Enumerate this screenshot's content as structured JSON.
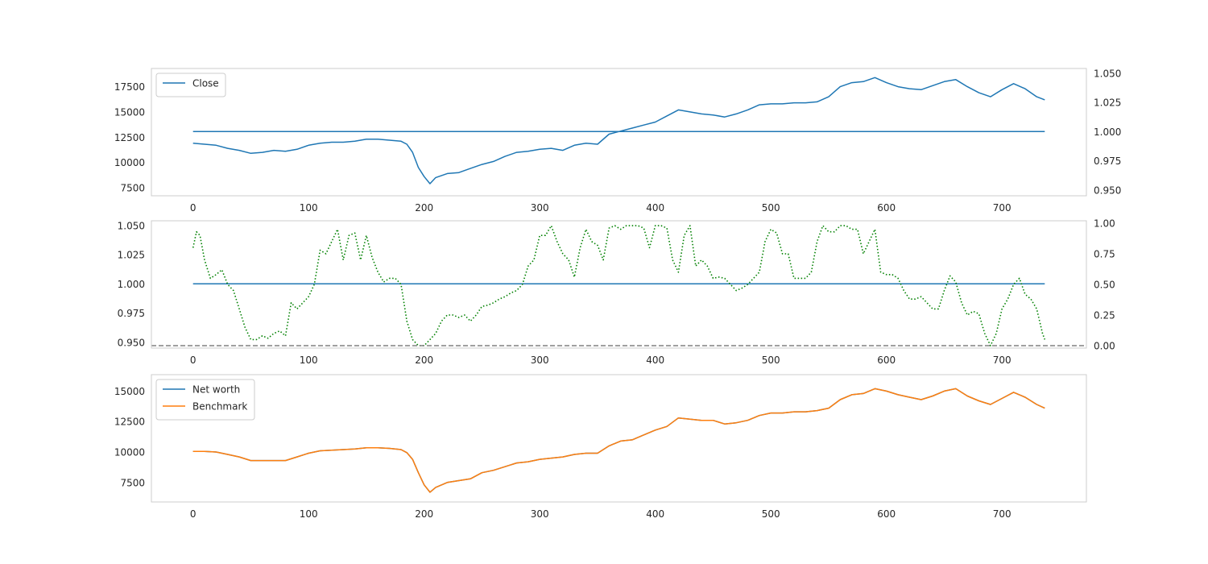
{
  "chart_data": [
    {
      "type": "line",
      "title": "",
      "xlabel": "",
      "ylabel": "",
      "xlim": [
        -36,
        773
      ],
      "xticks": [
        0,
        100,
        200,
        300,
        400,
        500,
        600,
        700
      ],
      "ylim": [
        6700,
        19300
      ],
      "yticks": [
        7500,
        10000,
        12500,
        15000,
        17500
      ],
      "y2lim": [
        0.945,
        1.054
      ],
      "y2ticks": [
        0.95,
        0.975,
        1.0,
        1.025,
        1.05
      ],
      "grid": false,
      "legend_position": "top-left",
      "legend": [
        "Close"
      ],
      "series": [
        {
          "name": "Close",
          "axis": "left",
          "color": "#1f77b4",
          "style": "solid",
          "x": [
            0,
            10,
            20,
            30,
            40,
            50,
            60,
            70,
            80,
            90,
            100,
            110,
            120,
            130,
            140,
            150,
            160,
            170,
            180,
            185,
            190,
            195,
            200,
            205,
            210,
            220,
            230,
            240,
            250,
            260,
            270,
            280,
            290,
            300,
            310,
            320,
            330,
            340,
            350,
            360,
            370,
            380,
            390,
            400,
            410,
            420,
            430,
            440,
            450,
            460,
            470,
            480,
            490,
            500,
            510,
            520,
            530,
            540,
            550,
            560,
            570,
            580,
            590,
            600,
            610,
            620,
            630,
            640,
            650,
            660,
            670,
            680,
            690,
            700,
            710,
            720,
            730,
            737
          ],
          "values": [
            11900,
            11800,
            11700,
            11400,
            11200,
            10900,
            11000,
            11200,
            11100,
            11300,
            11700,
            11900,
            12000,
            12000,
            12100,
            12300,
            12300,
            12200,
            12100,
            11800,
            11000,
            9500,
            8600,
            7900,
            8500,
            8900,
            9000,
            9400,
            9800,
            10100,
            10600,
            11000,
            11100,
            11300,
            11400,
            11200,
            11700,
            11900,
            11800,
            12800,
            13100,
            13400,
            13700,
            14000,
            14600,
            15200,
            15000,
            14800,
            14700,
            14500,
            14800,
            15200,
            15700,
            15800,
            15800,
            15900,
            15900,
            16000,
            16500,
            17500,
            17900,
            18000,
            18400,
            17900,
            17500,
            17300,
            17200,
            17600,
            18000,
            18200,
            17500,
            16900,
            16500,
            17200,
            17800,
            17300,
            16500,
            16200
          ]
        },
        {
          "name": "",
          "axis": "right",
          "color": "#1f77b4",
          "style": "solid",
          "x": [
            0,
            737
          ],
          "values": [
            1.0,
            1.0
          ]
        }
      ]
    },
    {
      "type": "line",
      "title": "",
      "xlabel": "",
      "ylabel": "",
      "xlim": [
        -36,
        773
      ],
      "xticks": [
        0,
        100,
        200,
        300,
        400,
        500,
        600,
        700
      ],
      "ylim": [
        0.945,
        1.054
      ],
      "yticks": [
        0.95,
        0.975,
        1.0,
        1.025,
        1.05
      ],
      "y2lim": [
        -0.02,
        1.02
      ],
      "y2ticks": [
        0.0,
        0.25,
        0.5,
        0.75,
        1.0
      ],
      "grid": false,
      "series": [
        {
          "name": "",
          "axis": "left",
          "color": "#1f77b4",
          "style": "solid",
          "x": [
            0,
            737
          ],
          "values": [
            1.0,
            1.0
          ]
        },
        {
          "name": "",
          "axis": "right",
          "color": "#008000",
          "style": "dotted",
          "x": [
            0,
            3,
            6,
            10,
            15,
            20,
            25,
            30,
            35,
            40,
            45,
            50,
            55,
            60,
            65,
            70,
            75,
            80,
            85,
            90,
            95,
            100,
            105,
            110,
            115,
            120,
            125,
            130,
            135,
            140,
            145,
            150,
            155,
            160,
            165,
            170,
            175,
            180,
            185,
            190,
            195,
            200,
            205,
            210,
            215,
            220,
            225,
            230,
            235,
            240,
            245,
            250,
            255,
            260,
            265,
            270,
            275,
            280,
            285,
            290,
            295,
            300,
            305,
            310,
            315,
            320,
            325,
            330,
            335,
            340,
            345,
            350,
            355,
            360,
            365,
            370,
            375,
            380,
            385,
            390,
            395,
            400,
            405,
            410,
            415,
            420,
            425,
            430,
            435,
            440,
            445,
            450,
            455,
            460,
            465,
            470,
            475,
            480,
            485,
            490,
            495,
            500,
            505,
            510,
            515,
            520,
            525,
            530,
            535,
            540,
            545,
            550,
            555,
            560,
            565,
            570,
            575,
            580,
            585,
            590,
            595,
            600,
            605,
            610,
            615,
            620,
            625,
            630,
            635,
            640,
            645,
            650,
            655,
            660,
            665,
            670,
            675,
            680,
            685,
            690,
            695,
            700,
            705,
            710,
            715,
            720,
            725,
            730,
            735,
            737
          ],
          "values": [
            0.8,
            0.93,
            0.9,
            0.7,
            0.55,
            0.58,
            0.62,
            0.5,
            0.45,
            0.3,
            0.15,
            0.05,
            0.05,
            0.08,
            0.06,
            0.1,
            0.12,
            0.08,
            0.35,
            0.3,
            0.35,
            0.4,
            0.5,
            0.78,
            0.75,
            0.85,
            0.95,
            0.7,
            0.9,
            0.92,
            0.7,
            0.9,
            0.72,
            0.6,
            0.52,
            0.55,
            0.55,
            0.5,
            0.2,
            0.05,
            0.0,
            0.0,
            0.05,
            0.1,
            0.2,
            0.25,
            0.25,
            0.23,
            0.25,
            0.2,
            0.25,
            0.32,
            0.33,
            0.35,
            0.38,
            0.4,
            0.43,
            0.45,
            0.5,
            0.65,
            0.7,
            0.9,
            0.9,
            0.98,
            0.85,
            0.75,
            0.7,
            0.56,
            0.8,
            0.95,
            0.85,
            0.82,
            0.7,
            0.96,
            0.98,
            0.95,
            0.98,
            0.98,
            0.98,
            0.96,
            0.8,
            0.98,
            0.98,
            0.96,
            0.7,
            0.6,
            0.9,
            0.98,
            0.65,
            0.7,
            0.65,
            0.55,
            0.56,
            0.55,
            0.5,
            0.45,
            0.47,
            0.5,
            0.55,
            0.6,
            0.85,
            0.95,
            0.92,
            0.75,
            0.75,
            0.55,
            0.55,
            0.55,
            0.6,
            0.85,
            0.98,
            0.93,
            0.93,
            0.98,
            0.98,
            0.95,
            0.95,
            0.75,
            0.85,
            0.95,
            0.6,
            0.58,
            0.58,
            0.55,
            0.45,
            0.38,
            0.38,
            0.4,
            0.35,
            0.3,
            0.3,
            0.45,
            0.57,
            0.52,
            0.35,
            0.25,
            0.28,
            0.26,
            0.1,
            0.0,
            0.1,
            0.3,
            0.38,
            0.5,
            0.55,
            0.42,
            0.38,
            0.3,
            0.1,
            0.05
          ]
        },
        {
          "name": "",
          "axis": "right",
          "color": "#808080",
          "style": "dashed",
          "x": [
            -36,
            773
          ],
          "values": [
            0.0,
            0.0
          ]
        }
      ]
    },
    {
      "type": "line",
      "title": "",
      "xlabel": "",
      "ylabel": "",
      "xlim": [
        -36,
        773
      ],
      "xticks": [
        0,
        100,
        200,
        300,
        400,
        500,
        600,
        700
      ],
      "ylim": [
        5900,
        16350
      ],
      "yticks": [
        7500,
        10000,
        12500,
        15000
      ],
      "grid": false,
      "legend_position": "top-left",
      "legend": [
        "Net worth",
        "Benchmark"
      ],
      "series": [
        {
          "name": "Net worth",
          "axis": "left",
          "color": "#1f77b4",
          "style": "solid",
          "x": [
            0,
            10,
            20,
            30,
            40,
            50,
            60,
            70,
            80,
            90,
            100,
            110,
            120,
            130,
            140,
            150,
            160,
            170,
            180,
            185,
            190,
            195,
            200,
            205,
            210,
            220,
            230,
            240,
            250,
            260,
            270,
            280,
            290,
            300,
            310,
            320,
            330,
            340,
            350,
            360,
            370,
            380,
            390,
            400,
            410,
            420,
            430,
            440,
            450,
            460,
            470,
            480,
            490,
            500,
            510,
            520,
            530,
            540,
            550,
            560,
            570,
            580,
            590,
            600,
            610,
            620,
            630,
            640,
            650,
            660,
            670,
            680,
            690,
            700,
            710,
            720,
            730,
            737
          ],
          "values": [
            10050,
            10050,
            10000,
            9800,
            9600,
            9300,
            9300,
            9300,
            9300,
            9600,
            9900,
            10100,
            10150,
            10200,
            10250,
            10350,
            10350,
            10300,
            10200,
            9950,
            9400,
            8300,
            7300,
            6700,
            7100,
            7500,
            7650,
            7800,
            8300,
            8500,
            8800,
            9100,
            9200,
            9400,
            9500,
            9600,
            9800,
            9900,
            9900,
            10500,
            10900,
            11000,
            11400,
            11800,
            12100,
            12800,
            12700,
            12600,
            12600,
            12300,
            12400,
            12600,
            13000,
            13200,
            13200,
            13300,
            13300,
            13400,
            13600,
            14300,
            14700,
            14800,
            15200,
            15000,
            14700,
            14500,
            14300,
            14600,
            15000,
            15200,
            14600,
            14200,
            13900,
            14400,
            14900,
            14500,
            13900,
            13600
          ]
        },
        {
          "name": "Benchmark",
          "axis": "left",
          "color": "#ff7f0e",
          "style": "solid",
          "x": [
            0,
            10,
            20,
            30,
            40,
            50,
            60,
            70,
            80,
            90,
            100,
            110,
            120,
            130,
            140,
            150,
            160,
            170,
            180,
            185,
            190,
            195,
            200,
            205,
            210,
            220,
            230,
            240,
            250,
            260,
            270,
            280,
            290,
            300,
            310,
            320,
            330,
            340,
            350,
            360,
            370,
            380,
            390,
            400,
            410,
            420,
            430,
            440,
            450,
            460,
            470,
            480,
            490,
            500,
            510,
            520,
            530,
            540,
            550,
            560,
            570,
            580,
            590,
            600,
            610,
            620,
            630,
            640,
            650,
            660,
            670,
            680,
            690,
            700,
            710,
            720,
            730,
            737
          ],
          "values": [
            10050,
            10050,
            10000,
            9800,
            9600,
            9300,
            9300,
            9300,
            9300,
            9600,
            9900,
            10100,
            10150,
            10200,
            10250,
            10350,
            10350,
            10300,
            10200,
            9950,
            9400,
            8300,
            7300,
            6700,
            7100,
            7500,
            7650,
            7800,
            8300,
            8500,
            8800,
            9100,
            9200,
            9400,
            9500,
            9600,
            9800,
            9900,
            9900,
            10500,
            10900,
            11000,
            11400,
            11800,
            12100,
            12800,
            12700,
            12600,
            12600,
            12300,
            12400,
            12600,
            13000,
            13200,
            13200,
            13300,
            13300,
            13400,
            13600,
            14300,
            14700,
            14800,
            15200,
            15000,
            14700,
            14500,
            14300,
            14600,
            15000,
            15200,
            14600,
            14200,
            13900,
            14400,
            14900,
            14500,
            13900,
            13600
          ]
        }
      ]
    }
  ]
}
